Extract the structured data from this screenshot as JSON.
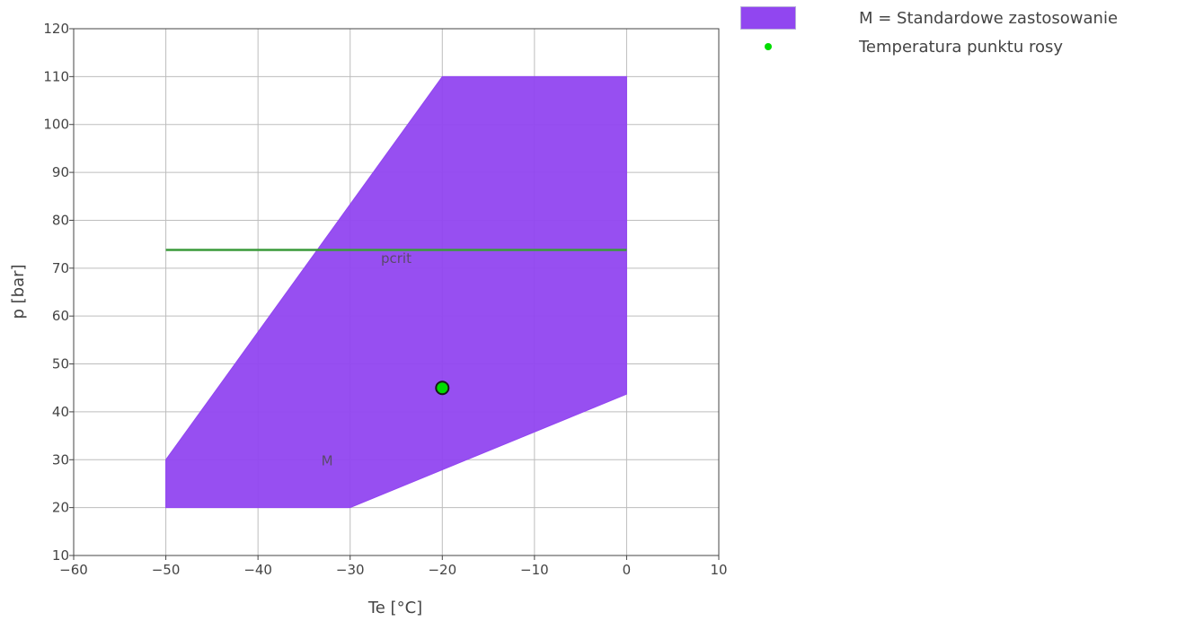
{
  "chart_data": {
    "type": "area",
    "xlabel": "Te [°C]",
    "ylabel": "p [bar]",
    "xlim": [
      -60,
      10
    ],
    "ylim": [
      10,
      120
    ],
    "x_ticks": [
      -60,
      -50,
      -40,
      -30,
      -20,
      -10,
      0,
      10
    ],
    "x_tick_labels": [
      "−60",
      "−50",
      "−40",
      "−30",
      "−20",
      "−10",
      "0",
      "10"
    ],
    "y_ticks": [
      10,
      20,
      30,
      40,
      50,
      60,
      70,
      80,
      90,
      100,
      110,
      120
    ],
    "y_tick_labels": [
      "10",
      "20",
      "30",
      "40",
      "50",
      "60",
      "70",
      "80",
      "90",
      "100",
      "110",
      "120"
    ],
    "grid": true,
    "legend_position": "top-right",
    "series": [
      {
        "name": "M = Standardowe zastosowanie",
        "kind": "polygon",
        "color": "#9146f0",
        "points": [
          {
            "x": -50,
            "y": 20
          },
          {
            "x": -50,
            "y": 30
          },
          {
            "x": -20,
            "y": 110
          },
          {
            "x": 0,
            "y": 110
          },
          {
            "x": 0,
            "y": 43.7
          },
          {
            "x": -30,
            "y": 20
          }
        ],
        "label": "M",
        "label_at": {
          "x": -32.5,
          "y": 30
        }
      },
      {
        "name": "Temperatura punktu rosy",
        "kind": "point",
        "color": "#00dd00",
        "points": [
          {
            "x": -20,
            "y": 45
          }
        ]
      }
    ],
    "reference_lines": [
      {
        "label": "pcrit",
        "y": 73.8,
        "x_from": -50,
        "x_to": 0,
        "color": "#3a9a3a",
        "label_at": {
          "x": -25,
          "y": 72
        }
      }
    ]
  }
}
